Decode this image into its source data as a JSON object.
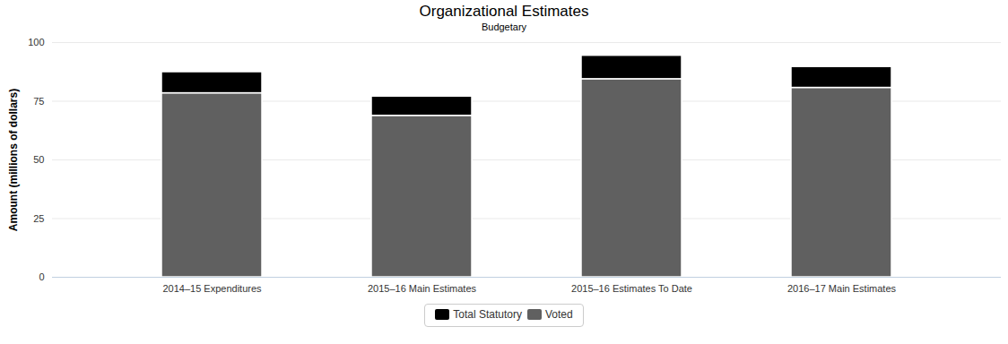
{
  "chart_data": {
    "type": "bar",
    "title": "Organizational Estimates",
    "subtitle": "Budgetary",
    "y_label": "Amount (millions of dollars)",
    "categories": [
      "2014–15 Expenditures",
      "2015–16 Main Estimates",
      "2015–16 Estimates To Date",
      "2016–17 Main Estimates"
    ],
    "series": [
      {
        "name": "Total Statutory",
        "color": "#000000",
        "values": [
          9.0,
          8.2,
          10.0,
          8.9
        ]
      },
      {
        "name": "Voted",
        "color": "#606060",
        "values": [
          78.4,
          68.8,
          84.4,
          80.7
        ]
      }
    ],
    "stacked": true,
    "ylim": [
      0,
      100
    ],
    "yticks": [
      0,
      25,
      50,
      75,
      100
    ],
    "grid": true,
    "legend": "bottom"
  }
}
